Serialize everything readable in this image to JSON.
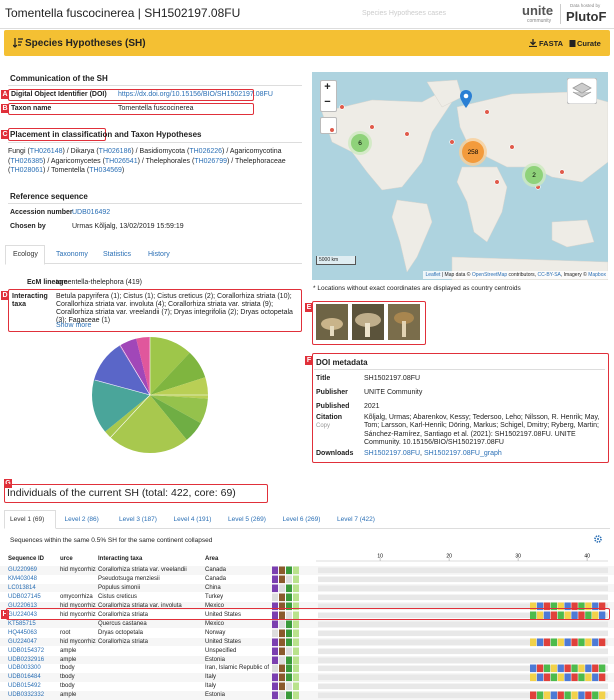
{
  "header": {
    "title": "Tomentella fuscocinerea | SH1502197.08FU",
    "search": "Species Hypotheses cases",
    "logo": "unite",
    "logo_sub": "community",
    "hosted_by": "Data hosted by",
    "host": "PlutoF"
  },
  "toolbar": {
    "title": "Species Hypotheses (SH)",
    "fasta": "FASTA",
    "curate": "Curate"
  },
  "annotations": [
    "A",
    "B",
    "C",
    "D",
    "E",
    "F",
    "G",
    "H"
  ],
  "communication": {
    "heading": "Communication of the SH",
    "doi_label": "Digital Object Identifier (DOI)",
    "doi": "https://dx.doi.org/10.15156/BIO/SH1502197.08FU",
    "taxon_label": "Taxon name",
    "taxon": "Tomentella fuscocinerea"
  },
  "placement": {
    "heading": "Placement in classification",
    "heading_rest": "and Taxon Hypotheses",
    "segments": [
      "Fungi (",
      "TH026148",
      ") / Dikarya (",
      "TH026186",
      ") / Basidiomycota (",
      "TH026226",
      ") / Agaricomycotina (",
      "TH026385",
      ") / Agaricomycetes (",
      "TH026541",
      ") / Thelephorales (",
      "TH026799",
      ") / Thelephoraceae (",
      "TH028061",
      ") / Tomentella (",
      "TH034569",
      ")"
    ]
  },
  "reference": {
    "heading": "Reference sequence",
    "accession_label": "Accession number",
    "accession": "UDB016492",
    "chosen_label": "Chosen by",
    "chosen": "Urmas Kõljalg, 13/02/2019 15:59:19"
  },
  "tabs": [
    "Ecology",
    "Taxonomy",
    "Statistics",
    "History"
  ],
  "ecology": {
    "lineage_label": "EcM lineage",
    "lineage": "tomentella-thelephora (419)",
    "taxa_label": "Interacting taxa",
    "taxa": "Betula papyrifera (1); Cistus (1); Cistus creticus (2); Corallorhiza striata (10); Corallorhiza striata var. involuta (4); Corallorhiza striata var. striata (9); Corallorhiza striata var. vreelandii (7); Dryas integrifolia (2); Dryas octopetala (3); Fagaceae (1)",
    "show_more": "Show more"
  },
  "map": {
    "zoom_in": "+",
    "zoom_out": "−",
    "clusters": [
      6,
      258,
      2
    ],
    "scale": "5000 km",
    "attribution": [
      "Leaflet",
      " | Map data © ",
      "OpenStreetMap",
      " contributors, ",
      "CC-BY-SA",
      ", Imagery © ",
      "Mapbox"
    ],
    "note": "* Locations without exact coordinates are displayed as country centroids"
  },
  "doi_metadata": {
    "heading": "DOI metadata",
    "title_label": "Title",
    "title": "SH1502197.08FU",
    "publisher_label": "Publisher",
    "publisher": "UNITE Community",
    "published_label": "Published",
    "published": "2021",
    "citation_label": "Citation",
    "copy": "Copy",
    "citation": "Kõljalg, Urmas; Abarenkov, Kessy; Tedersoo, Leho; Nilsson, R. Henrik; May, Tom; Larsson, Karl-Henrik; Döring, Markus; Schigel, Dmitry; Ryberg, Martin; Sánchez-Ramírez, Santiago et al. (2021): SH1502197.08FU. UNITE Community. 10.15156/BIO/SH1502197.08FU",
    "downloads_label": "Downloads",
    "downloads": [
      "SH1502197.08FU",
      ", ",
      "SH1502197.08FU_graph"
    ]
  },
  "individuals": {
    "heading": "Individuals of the current SH (total: 422, core: 69)",
    "levels": [
      "Level 1 (69)",
      "Level 2 (86)",
      "Level 3 (187)",
      "Level 4 (191)",
      "Level 5 (269)",
      "Level 6 (269)",
      "Level 7 (422)"
    ],
    "note": "Sequences within the same 0.5% SH for the same continent collapsed",
    "columns": [
      "Sequence ID",
      "urce",
      "Interacting taxa",
      "Area"
    ],
    "scale": [
      10,
      20,
      30,
      40
    ],
    "rows": [
      [
        "GU220969",
        "hid mycorrhiza",
        "Corallorhiza striata var. vreelandii",
        "Canada"
      ],
      [
        "KM403048",
        null,
        "Pseudotsuga menziesii",
        "Canada"
      ],
      [
        "LC013814",
        null,
        "Populus simonii",
        "China"
      ],
      [
        "UDB027145",
        "omycorrhiza",
        "Cistus creticus",
        "Turkey"
      ],
      [
        "GU220613",
        "hid mycorrhiza",
        "Corallorhiza striata var. involuta",
        "Mexico"
      ],
      [
        "GU224043",
        "hid mycorrhiza",
        "Corallorhiza striata",
        "United States"
      ],
      [
        "KT585715",
        null,
        "Quercus castanea",
        "Mexico"
      ],
      [
        "HQ445063",
        "root",
        "Dryas octopetala",
        "Norway"
      ],
      [
        "GU224047",
        "hid mycorrhiza",
        "Corallorhiza striata",
        "United States"
      ],
      [
        "UDB0154372",
        "ample",
        null,
        "Unspecified"
      ],
      [
        "UDB0232916",
        "ample",
        null,
        "Estonia"
      ],
      [
        "UDB003300",
        "tbody",
        null,
        "Iran, Islamic Republic of"
      ],
      [
        "UDB016484",
        "tbody",
        null,
        "Italy"
      ],
      [
        "UDB015492",
        "tbody",
        null,
        "Italy"
      ],
      [
        "UDB0332332",
        "ample",
        null,
        "Estonia"
      ]
    ]
  }
}
